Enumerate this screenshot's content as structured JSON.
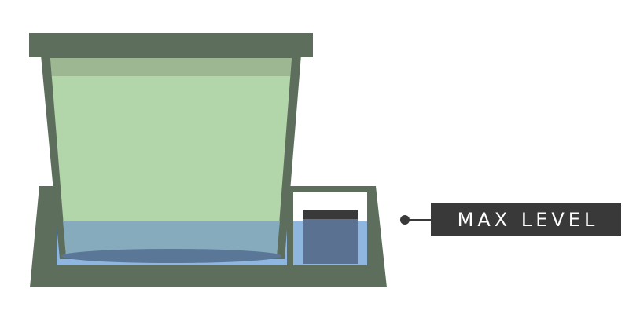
{
  "callout": {
    "label": "MAX LEVEL"
  },
  "colors": {
    "body": "#5e6e5c",
    "lid": "#5e6e5c",
    "pot_fill": "#b2d5aa",
    "pot_band": "#9db792",
    "water": "#8fb6df",
    "water_in_pot": "#85abbc",
    "root_mat": "#5a7797",
    "indicator": "#5a7192",
    "indicator_cap": "#393939",
    "reservoir_bg": "#ffffff",
    "callout_bg": "#393939",
    "callout_text": "#ffffff"
  }
}
